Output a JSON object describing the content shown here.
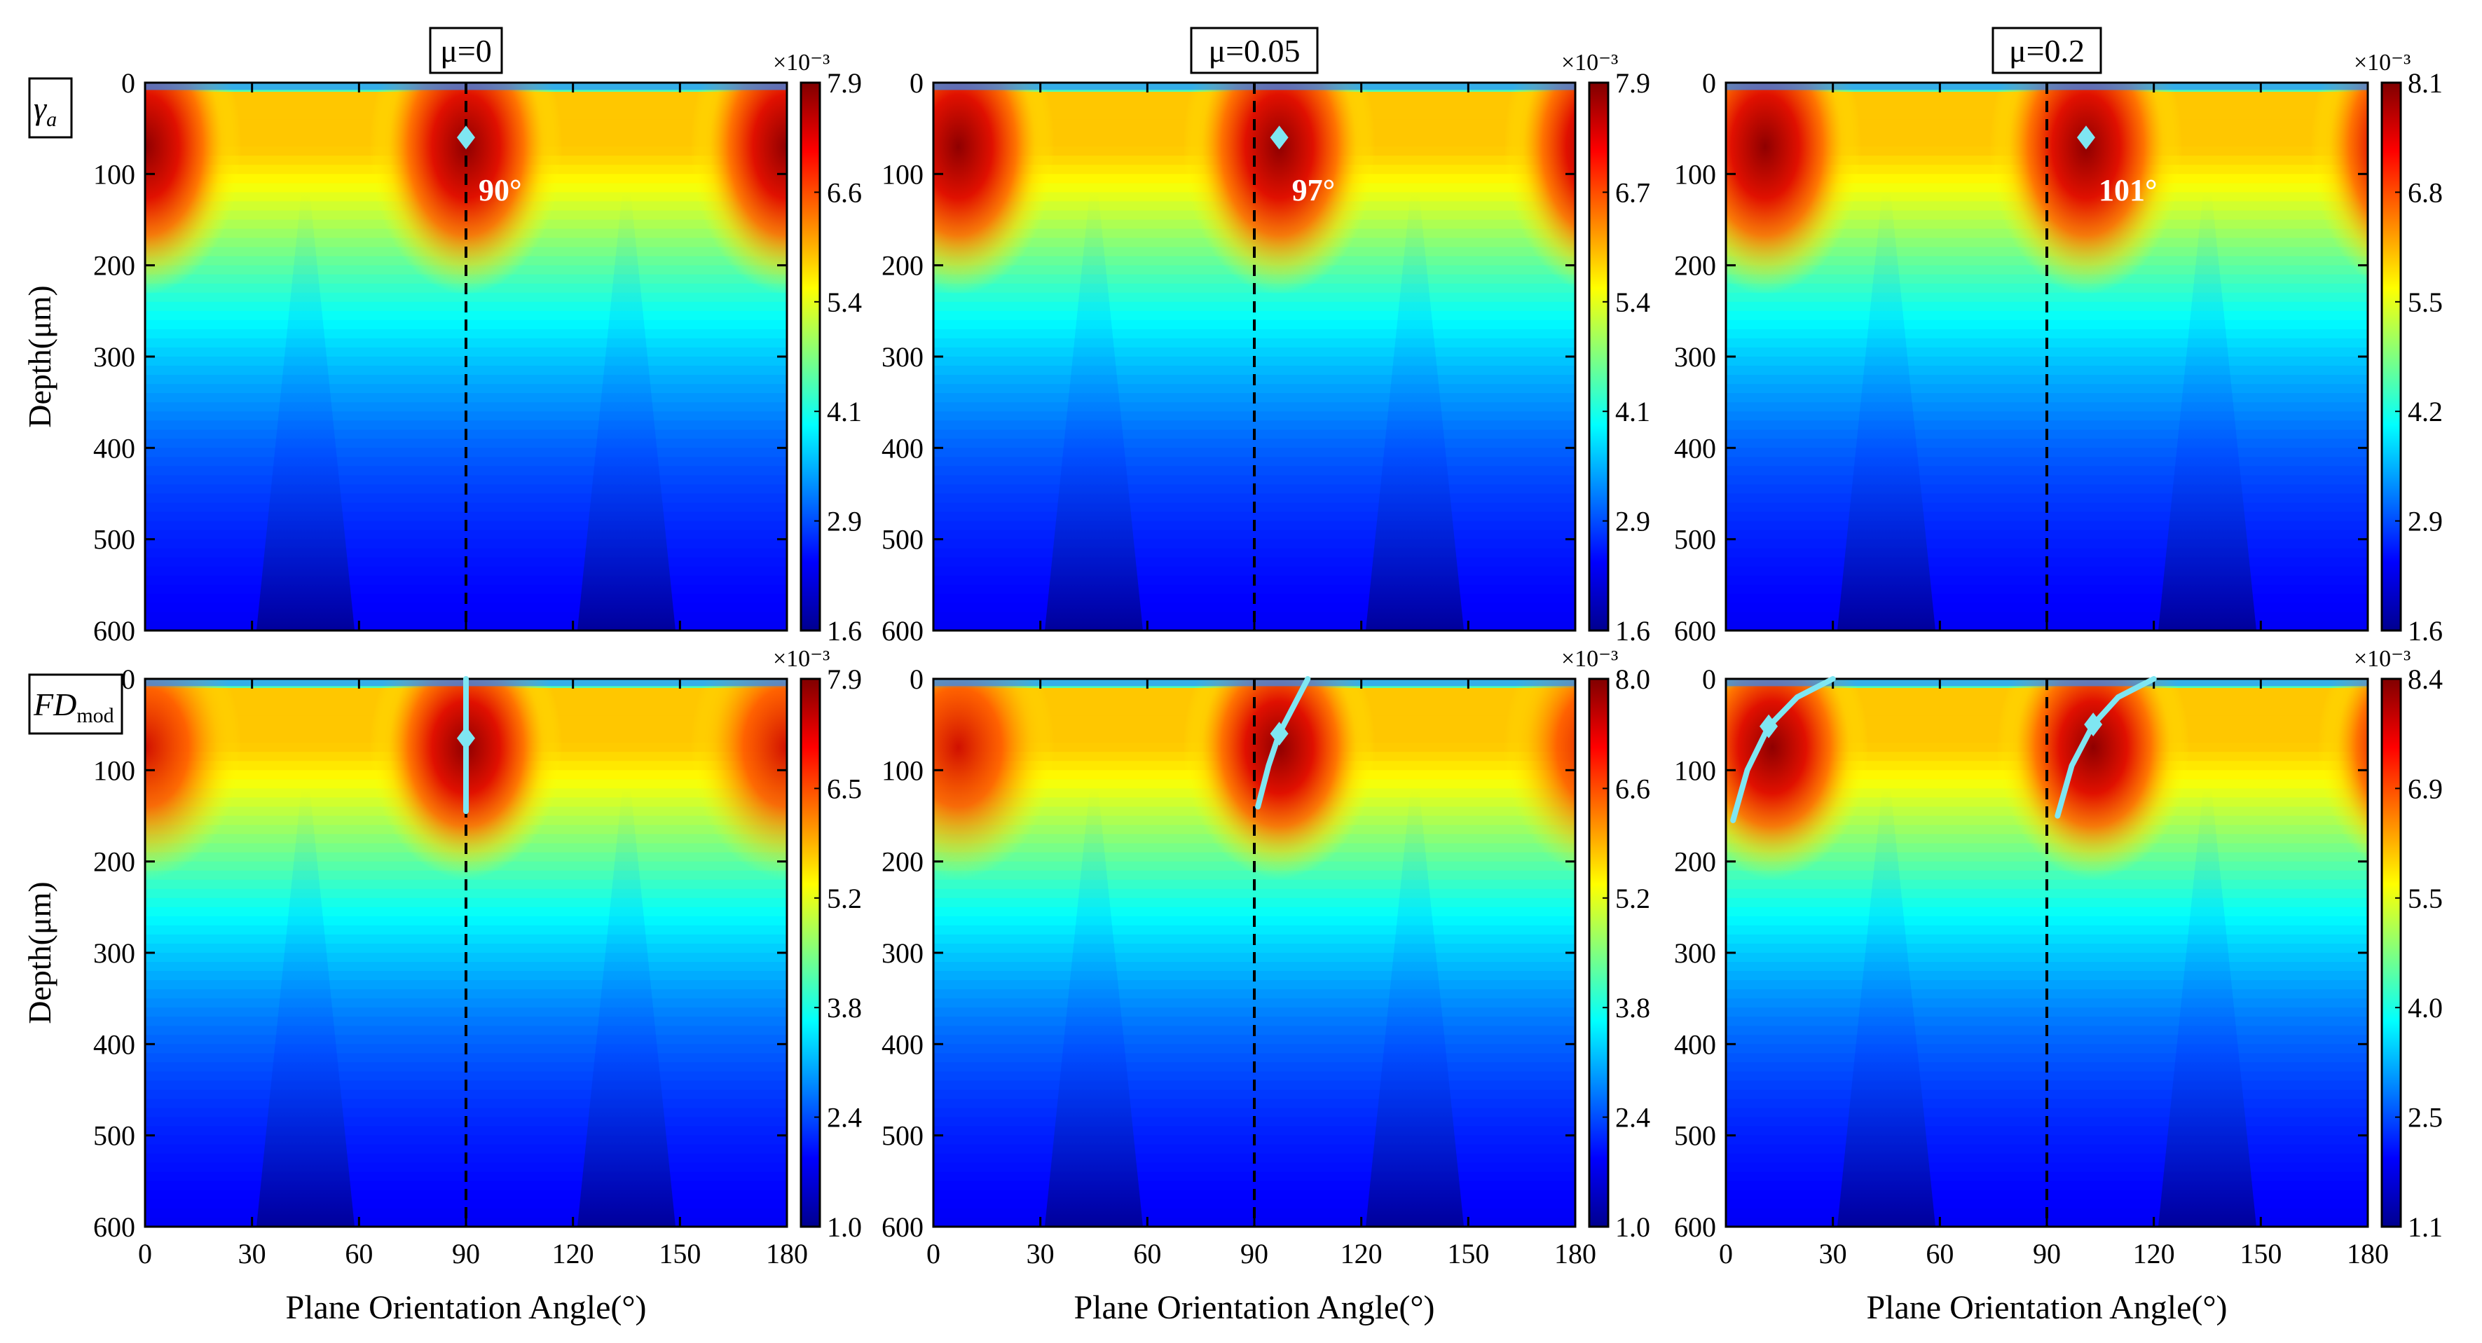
{
  "chart_data": {
    "type": "heatmap",
    "xlabel": "Plane Orientation Angle(°)",
    "x_ticks": [
      "0",
      "30",
      "60",
      "90",
      "120",
      "150",
      "180"
    ],
    "xlim": [
      0,
      180
    ],
    "ylabel": "Depth(μm)",
    "y_ticks": [
      "0",
      "100",
      "200",
      "300",
      "400",
      "500",
      "600"
    ],
    "ylim": [
      0,
      600
    ],
    "colorbar_exponent": "×10⁻³",
    "colormap": "jet",
    "colors": {
      "guide_line": "#000000",
      "marker": "#7fe6f2"
    },
    "column_titles": [
      "μ=0",
      "μ=0.05",
      "μ=0.2"
    ],
    "row_labels": [
      "γa",
      "FDmod"
    ],
    "row_label_parts": [
      {
        "main": "γ",
        "sub": "a"
      },
      {
        "main": "FD",
        "sub": "mod"
      }
    ],
    "panels": [
      {
        "row": 0,
        "col": 0,
        "variable": "γa",
        "mu": "μ=0",
        "cbar_ticks": [
          "7.9",
          "6.6",
          "5.4",
          "4.1",
          "2.9",
          "1.6"
        ],
        "vmin": 1.6,
        "vmax": 7.9,
        "peak": {
          "angle": 90,
          "depth": 60,
          "label": "90°"
        },
        "guide_angle": 90,
        "curve": []
      },
      {
        "row": 0,
        "col": 1,
        "variable": "γa",
        "mu": "μ=0.05",
        "cbar_ticks": [
          "7.9",
          "6.7",
          "5.4",
          "4.1",
          "2.9",
          "1.6"
        ],
        "vmin": 1.6,
        "vmax": 7.9,
        "peak": {
          "angle": 97,
          "depth": 60,
          "label": "97°"
        },
        "guide_angle": 90,
        "curve": []
      },
      {
        "row": 0,
        "col": 2,
        "variable": "γa",
        "mu": "μ=0.2",
        "cbar_ticks": [
          "8.1",
          "6.8",
          "5.5",
          "4.2",
          "2.9",
          "1.6"
        ],
        "vmin": 1.6,
        "vmax": 8.1,
        "peak": {
          "angle": 101,
          "depth": 60,
          "label": "101°"
        },
        "guide_angle": 90,
        "curve": []
      },
      {
        "row": 1,
        "col": 0,
        "variable": "FDmod",
        "mu": "μ=0",
        "cbar_ticks": [
          "7.9",
          "6.5",
          "5.2",
          "3.8",
          "2.4",
          "1.0"
        ],
        "vmin": 1.0,
        "vmax": 7.9,
        "peak": {
          "angle": 90,
          "depth": 65
        },
        "guide_angle": 90,
        "curve": [
          [
            [
              90,
              0
            ],
            [
              90,
              40
            ],
            [
              90,
              65
            ],
            [
              90,
              100
            ],
            [
              90,
              145
            ]
          ]
        ]
      },
      {
        "row": 1,
        "col": 1,
        "variable": "FDmod",
        "mu": "μ=0.05",
        "cbar_ticks": [
          "8.0",
          "6.6",
          "5.2",
          "3.8",
          "2.4",
          "1.0"
        ],
        "vmin": 1.0,
        "vmax": 8.0,
        "peak": {
          "angle": 97,
          "depth": 60
        },
        "guide_angle": 90,
        "curve": [
          [
            [
              105,
              0
            ],
            [
              101,
              30
            ],
            [
              97,
              60
            ],
            [
              94,
              95
            ],
            [
              91,
              140
            ]
          ]
        ]
      },
      {
        "row": 1,
        "col": 2,
        "variable": "FDmod",
        "mu": "μ=0.2",
        "cbar_ticks": [
          "8.4",
          "6.9",
          "5.5",
          "4.0",
          "2.5",
          "1.1"
        ],
        "vmin": 1.1,
        "vmax": 8.4,
        "peak": {
          "angle": 103,
          "depth": 50
        },
        "guide_angle": 90,
        "peak_secondary": {
          "angle": 12,
          "depth": 52
        },
        "curve": [
          [
            [
              120,
              0
            ],
            [
              110,
              20
            ],
            [
              103,
              50
            ],
            [
              97,
              95
            ],
            [
              93,
              150
            ]
          ],
          [
            [
              30,
              0
            ],
            [
              20,
              20
            ],
            [
              12,
              52
            ],
            [
              6,
              100
            ],
            [
              2,
              155
            ]
          ]
        ]
      }
    ]
  }
}
